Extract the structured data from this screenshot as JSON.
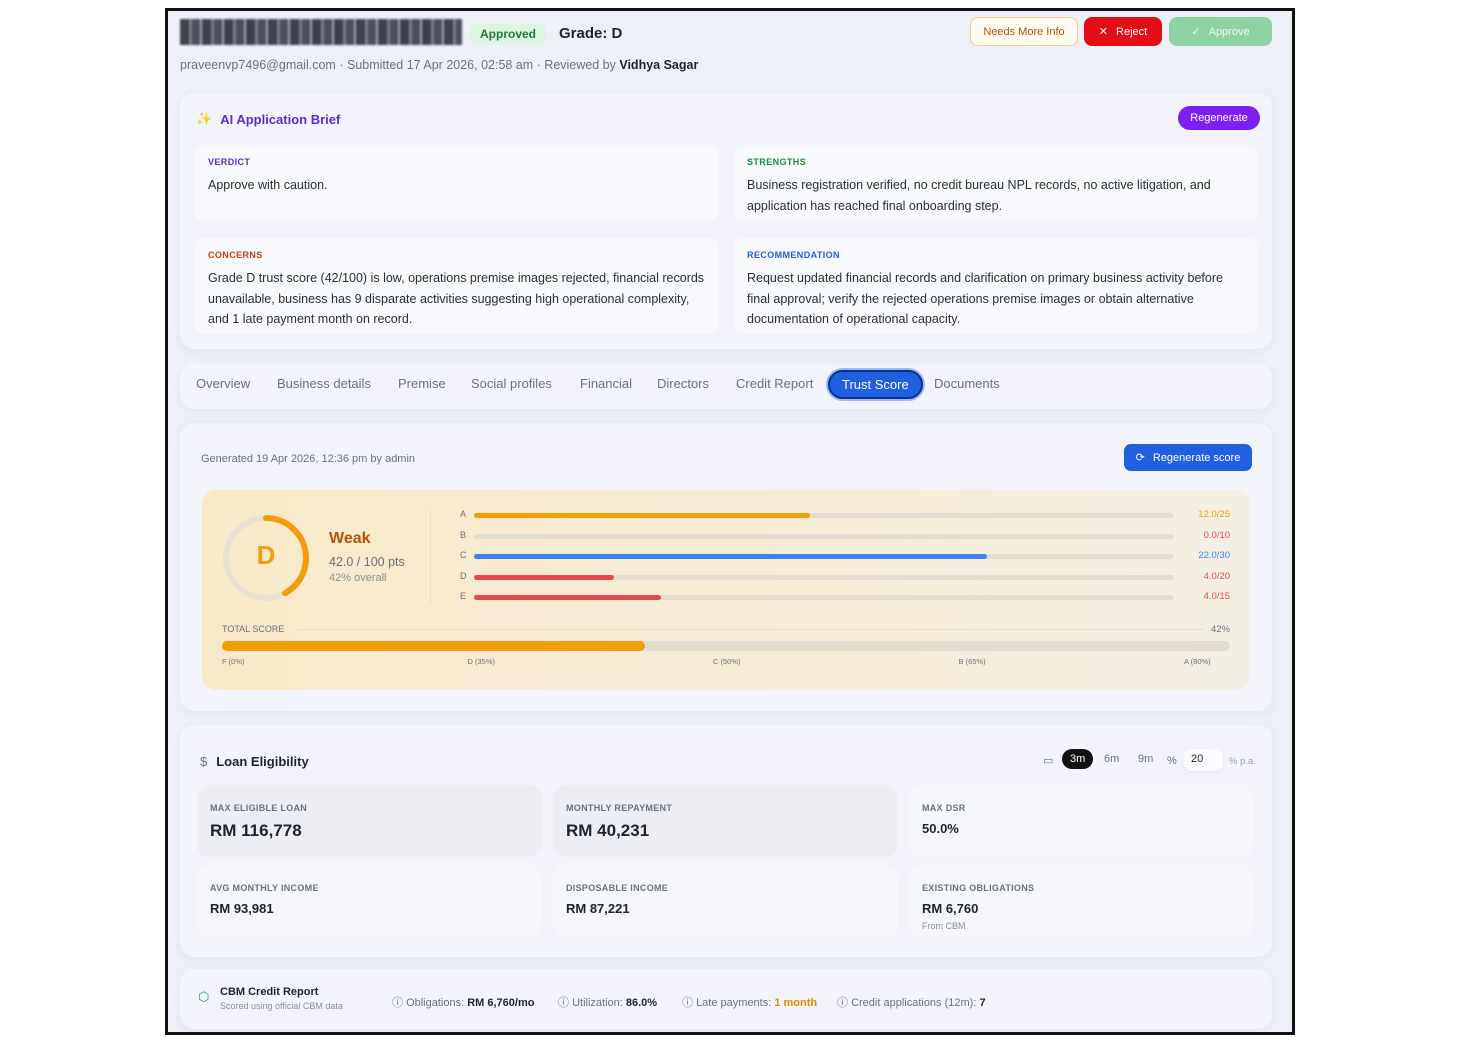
{
  "header": {
    "status": "Approved",
    "grade": "Grade: D",
    "email": "praveenvp7496@gmail.com",
    "submitted": " · Submitted 17 Apr 2026, 02:58 am · Reviewed by ",
    "reviewer": "Vidhya Sagar",
    "buttons": {
      "needs_more_info": "Needs More Info",
      "reject": "Reject",
      "approve": "Approve"
    }
  },
  "brief": {
    "title": "AI Application Brief",
    "regenerate": "Regenerate",
    "verdict": {
      "label": "VERDICT",
      "text": "Approve with caution."
    },
    "strengths": {
      "label": "STRENGTHS",
      "text": "Business registration verified, no credit bureau NPL records, no active litigation, and application has reached final onboarding step."
    },
    "concerns": {
      "label": "CONCERNS",
      "text": "Grade D trust score (42/100) is low, operations premise images rejected, financial records unavailable, business has 9 disparate activities suggesting high operational complexity, and 1 late payment month on record."
    },
    "recommendation": {
      "label": "RECOMMENDATION",
      "text": "Request updated financial records and clarification on primary business activity before final approval; verify the rejected operations premise images or obtain alternative documentation of operational capacity."
    }
  },
  "tabs": [
    "Overview",
    "Business details",
    "Premise",
    "Social profiles",
    "Financial",
    "Directors",
    "Credit Report",
    "Trust Score",
    "Documents"
  ],
  "active_tab": "Trust Score",
  "trust": {
    "generated": "Generated 19 Apr 2026, 12:36 pm by admin",
    "regenerate": "Regenerate score",
    "grade": "D",
    "rating": "Weak",
    "points": "42.0 / 100 pts",
    "overall": "42% overall",
    "overall_fraction": 0.42,
    "categories": [
      {
        "label": "A",
        "score": 12.0,
        "max": 25,
        "text": "12.0/25",
        "color": "#f29d0b"
      },
      {
        "label": "B",
        "score": 0.0,
        "max": 10,
        "text": "0.0/10",
        "color": "#e5484d"
      },
      {
        "label": "C",
        "score": 22.0,
        "max": 30,
        "text": "22.0/30",
        "color": "#3b82f6"
      },
      {
        "label": "D",
        "score": 4.0,
        "max": 20,
        "text": "4.0/20",
        "color": "#e5484d"
      },
      {
        "label": "E",
        "score": 4.0,
        "max": 15,
        "text": "4.0/15",
        "color": "#e5484d"
      }
    ],
    "total_label": "TOTAL SCORE",
    "total_pct": "42%",
    "total_value": 42,
    "scale": [
      "F (0%)",
      "D (35%)",
      "C (50%)",
      "B (65%)",
      "A (80%)"
    ]
  },
  "loan": {
    "title": "Loan Eligibility",
    "periods": [
      "3m",
      "6m",
      "9m"
    ],
    "active_period": "3m",
    "rate": "20",
    "rate_unit": "% p.a.",
    "metrics": [
      {
        "label": "MAX ELIGIBLE LOAN",
        "value": "RM 116,778"
      },
      {
        "label": "MONTHLY REPAYMENT",
        "value": "RM 40,231"
      },
      {
        "label": "MAX DSR",
        "value": "50.0%"
      },
      {
        "label": "AVG MONTHLY INCOME",
        "value": "RM 93,981"
      },
      {
        "label": "DISPOSABLE INCOME",
        "value": "RM 87,221"
      },
      {
        "label": "EXISTING OBLIGATIONS",
        "value": "RM 6,760",
        "note": "From CBM"
      }
    ]
  },
  "cbm": {
    "title": "CBM Credit Report",
    "subtitle": "Scored using official CBM data",
    "items": [
      {
        "label": "Obligations: ",
        "value": "RM 6,760/mo"
      },
      {
        "label": "Utilization: ",
        "value": "86.0%"
      },
      {
        "label": "Late payments: ",
        "value": "1 month"
      },
      {
        "label": "Credit applications (12m): ",
        "value": "7"
      }
    ]
  },
  "colors": {
    "accent": "#1f5fe0",
    "purple": "#7c1ff0",
    "reject": "#e30d17",
    "approve": "#8fd3a4",
    "grade": "#f29d0b"
  }
}
